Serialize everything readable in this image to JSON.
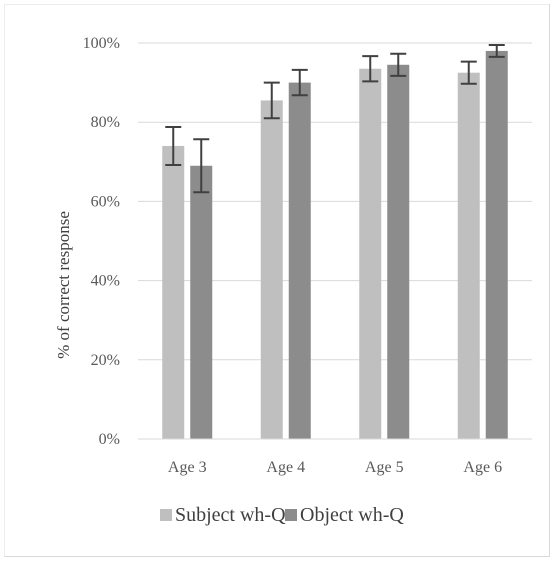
{
  "chart_data": {
    "type": "bar",
    "title": "",
    "xlabel": "",
    "ylabel": "% of correct response",
    "ylim": [
      0,
      100
    ],
    "yticks": [
      "0%",
      "20%",
      "40%",
      "60%",
      "80%",
      "100%"
    ],
    "ytick_values": [
      0,
      20,
      40,
      60,
      80,
      100
    ],
    "grid": true,
    "legend_position": "bottom",
    "categories": [
      "Age 3",
      "Age 4",
      "Age 5",
      "Age 6"
    ],
    "series": [
      {
        "name": "Subject wh-Q",
        "color": "#bfbfbf",
        "values": [
          74,
          85.5,
          93.5,
          92.5
        ],
        "error": [
          4.8,
          4.5,
          3.2,
          2.8
        ]
      },
      {
        "name": "Object wh-Q",
        "color": "#8c8c8c",
        "values": [
          69,
          90,
          94.5,
          98
        ],
        "error": [
          6.7,
          3.2,
          2.8,
          1.5
        ]
      }
    ]
  }
}
